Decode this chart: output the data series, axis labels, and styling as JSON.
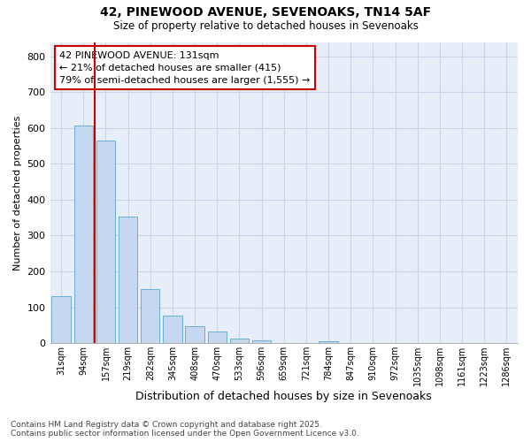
{
  "title1": "42, PINEWOOD AVENUE, SEVENOAKS, TN14 5AF",
  "title2": "Size of property relative to detached houses in Sevenoaks",
  "xlabel": "Distribution of detached houses by size in Sevenoaks",
  "ylabel": "Number of detached properties",
  "categories": [
    "31sqm",
    "94sqm",
    "157sqm",
    "219sqm",
    "282sqm",
    "345sqm",
    "408sqm",
    "470sqm",
    "533sqm",
    "596sqm",
    "659sqm",
    "721sqm",
    "784sqm",
    "847sqm",
    "910sqm",
    "972sqm",
    "1035sqm",
    "1098sqm",
    "1161sqm",
    "1223sqm",
    "1286sqm"
  ],
  "values": [
    130,
    607,
    565,
    352,
    150,
    77,
    47,
    32,
    13,
    7,
    0,
    0,
    5,
    0,
    0,
    0,
    0,
    0,
    0,
    0,
    0
  ],
  "bar_color": "#c5d8f0",
  "bar_edge_color": "#6baed6",
  "grid_color": "#c8d4e8",
  "bg_color": "#e8eef8",
  "property_line_x": 1.5,
  "property_line_color": "#cc0000",
  "annotation_text": "42 PINEWOOD AVENUE: 131sqm\n← 21% of detached houses are smaller (415)\n79% of semi-detached houses are larger (1,555) →",
  "annotation_box_color": "#cc0000",
  "footer1": "Contains HM Land Registry data © Crown copyright and database right 2025.",
  "footer2": "Contains public sector information licensed under the Open Government Licence v3.0.",
  "ylim": [
    0,
    840
  ],
  "yticks": [
    0,
    100,
    200,
    300,
    400,
    500,
    600,
    700,
    800
  ]
}
